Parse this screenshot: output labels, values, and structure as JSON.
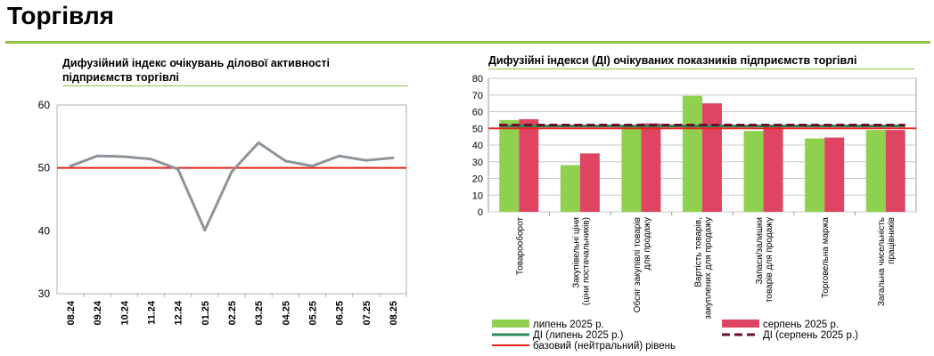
{
  "page": {
    "title": "Торгівля"
  },
  "chart_data": [
    {
      "type": "line",
      "title_lines": [
        "Дифузійний індекс очікувань ділової активності",
        "підприємств торгівлі"
      ],
      "categories": [
        "08.24",
        "09.24",
        "10.24",
        "11.24",
        "12.24",
        "01.25",
        "02.25",
        "03.25",
        "04.25",
        "05.25",
        "06.25",
        "07.25",
        "08.25"
      ],
      "series": [
        {
          "values": [
            50.3,
            51.9,
            51.8,
            51.4,
            49.8,
            40.1,
            49.4,
            54.0,
            51.1,
            50.3,
            51.9,
            51.2,
            51.6
          ],
          "color": "#8c9499"
        }
      ],
      "reference_line": {
        "value": 50,
        "color": "#e2231a"
      },
      "ylim": [
        30,
        60
      ],
      "yticks": [
        "30",
        "40",
        "50",
        "60"
      ],
      "grid": false
    },
    {
      "type": "bar",
      "title": "Дифузійні індекси (ДІ) очікуваних показників підприємств торгівлі",
      "categories": [
        [
          "Товарооборот"
        ],
        [
          "Закупівельні ціни",
          "(ціни постачальників)"
        ],
        [
          "Обсяг закупівлі товарів",
          "для продажу"
        ],
        [
          "Вартість товарів,",
          "закуплених для продажу"
        ],
        [
          "Запаси/залишки",
          "товарів для продажу"
        ],
        [
          "Торговельна маржа"
        ],
        [
          "Загальна чисельність",
          "працівників"
        ]
      ],
      "series": [
        {
          "name": "липень 2025 р.",
          "color": "#8fd14f",
          "values": [
            55.0,
            28.0,
            52.0,
            69.5,
            48.5,
            44.0,
            49.0
          ]
        },
        {
          "name": "серпень 2025 р.",
          "color": "#e04463",
          "values": [
            55.5,
            35.0,
            53.0,
            65.0,
            52.0,
            44.5,
            49.0
          ]
        }
      ],
      "di_lines": [
        {
          "name": "ДІ (липень 2025 р.)",
          "value": 51.5,
          "color": "#2e8b57"
        },
        {
          "name": "ДІ (серпень 2025 р.)",
          "value": 52.0,
          "color": "#6b0f2a"
        }
      ],
      "reference_line": {
        "name": "базовий (нейтральний) рівень",
        "value": 50,
        "color": "#e2231a"
      },
      "ylim": [
        0,
        80
      ],
      "yticks": [
        "0",
        "10",
        "20",
        "30",
        "40",
        "50",
        "60",
        "70",
        "80"
      ],
      "grid": true,
      "legend": "bottom"
    }
  ]
}
